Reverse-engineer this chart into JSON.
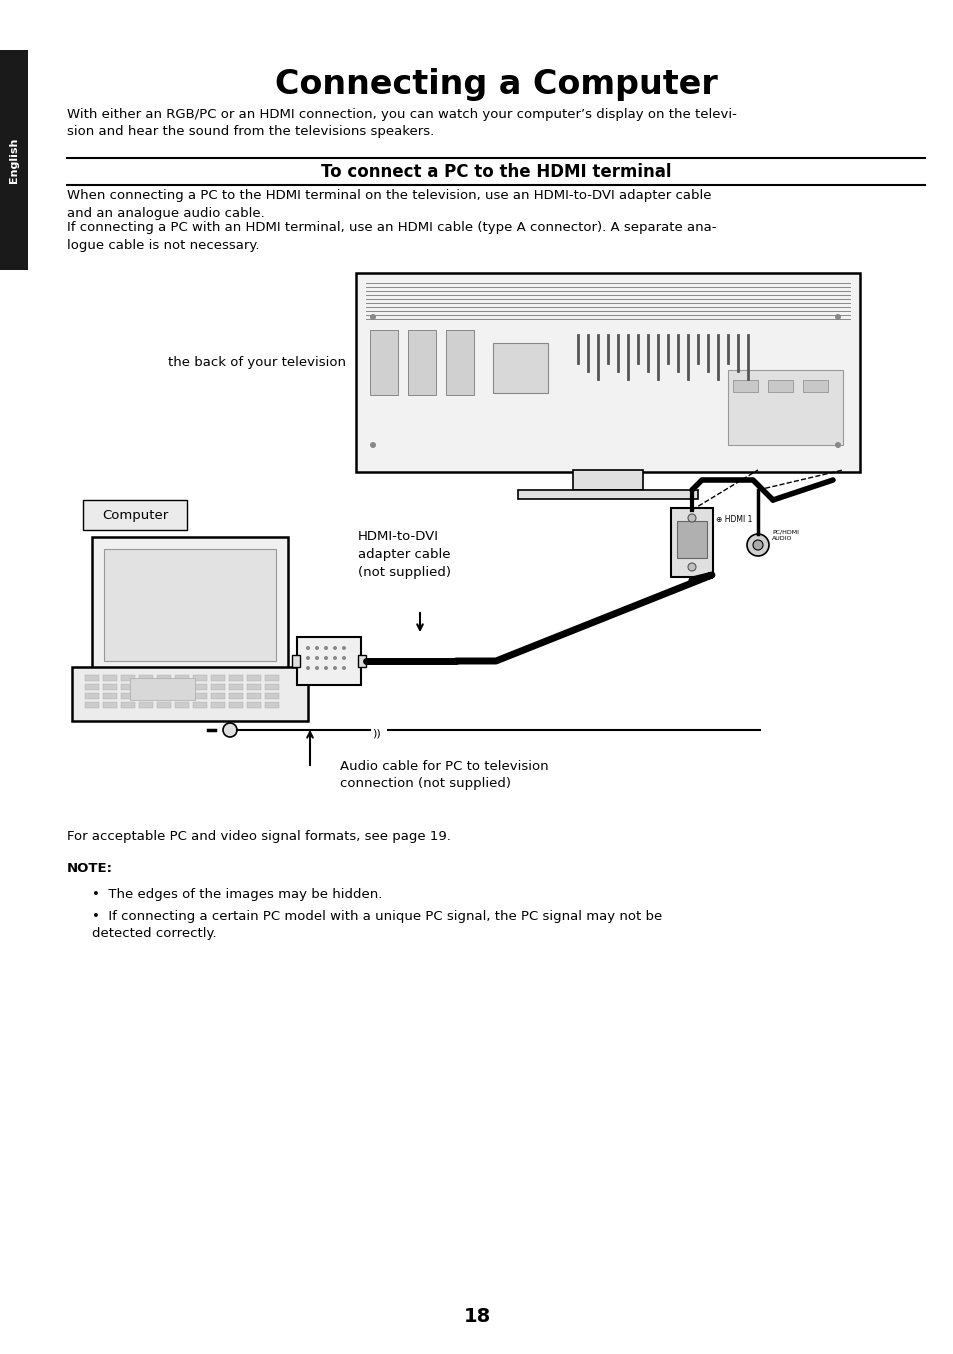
{
  "bg_color": "#ffffff",
  "sidebar_color": "#1a1a1a",
  "sidebar_text": "English",
  "title": "Connecting a Computer",
  "intro_text": "With either an RGB/PC or an HDMI connection, you can watch your computer’s display on the televi-\nsion and hear the sound from the televisions speakers.",
  "section_title": "To connect a PC to the HDMI terminal",
  "section_body1": "When connecting a PC to the HDMI terminal on the television, use an HDMI-to-DVI adapter cable\nand an analogue audio cable.",
  "section_body2": "If connecting a PC with an HDMI terminal, use an HDMI cable (type A connector). A separate ana-\nlogue cable is not necessary.",
  "label_tv": "the back of your television",
  "label_computer_box": "Computer",
  "label_hdmi": "HDMI-to-DVI\nadapter cable\n(not supplied)",
  "label_audio": "Audio cable for PC to television\nconnection (not supplied)",
  "note_label": "NOTE:",
  "note_intro": "For acceptable PC and video signal formats, see page 19.",
  "note_bullet1": "The edges of the images may be hidden.",
  "note_bullet2": "If connecting a certain PC model with a unique PC signal, the PC signal may not be\ndetected correctly.",
  "page_number": "18",
  "lm": 0.07,
  "rm": 0.97
}
